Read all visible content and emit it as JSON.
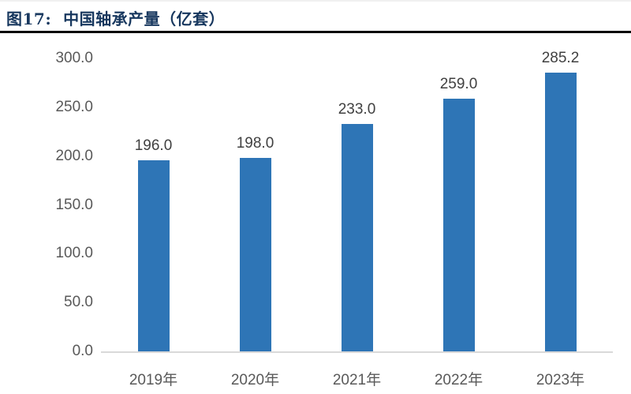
{
  "figure": {
    "label": "图17:",
    "title": "图17:  中国轴承产量（亿套）"
  },
  "colors": {
    "bar": "#2E75B6",
    "title_text": "#17375E",
    "tick_label": "#595959",
    "value_label": "#404040",
    "axis_line": "#D9D9D9",
    "title_rule": "#0C0C0C"
  },
  "chart_data": {
    "type": "bar",
    "title": "中国轴承产量（亿套）",
    "categories": [
      "2019年",
      "2020年",
      "2021年",
      "2022年",
      "2023年"
    ],
    "values": [
      196.0,
      198.0,
      233.0,
      259.0,
      285.2
    ],
    "value_labels": [
      "196.0",
      "198.0",
      "233.0",
      "259.0",
      "285.2"
    ],
    "xlabel": "",
    "ylabel": "",
    "ylim": [
      0,
      300
    ],
    "ytick_step": 50,
    "ytick_labels": [
      "0.0",
      "50.0",
      "100.0",
      "150.0",
      "200.0",
      "250.0",
      "300.0"
    ],
    "value_decimals": 1,
    "grid": false,
    "legend": false,
    "bar_color": "#2E75B6"
  }
}
